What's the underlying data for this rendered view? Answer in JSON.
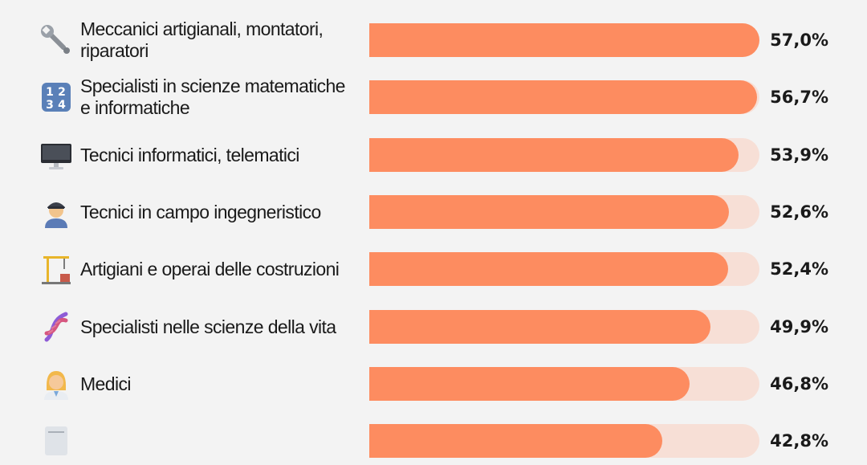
{
  "colors": {
    "background": "#f3f3f3",
    "bar": "#fd8c60",
    "track": "#f7dfd6",
    "text": "#1a1a1a"
  },
  "chart_data": {
    "type": "bar",
    "orientation": "horizontal",
    "max": 57.0,
    "categories": [
      "Meccanici artigianali, montatori, riparatori",
      "Specialisti in scienze matematiche e informatiche",
      "Tecnici informatici, telematici",
      "Tecnici in campo ingegneristico",
      "Artigiani e operai delle costruzioni",
      "Specialisti nelle scienze della vita",
      "Medici",
      ""
    ],
    "values": [
      57.0,
      56.7,
      53.9,
      52.6,
      52.4,
      49.9,
      46.8,
      42.8
    ],
    "value_labels": [
      "57,0%",
      "56,7%",
      "53,9%",
      "52,6%",
      "52,4%",
      "49,9%",
      "46,8%",
      "42,8%"
    ],
    "icons": [
      "wrench-icon",
      "numbers-icon",
      "computer-icon",
      "engineer-icon",
      "crane-icon",
      "dna-icon",
      "doctor-icon",
      "document-icon"
    ],
    "label_lines": [
      [
        "Meccanici artigianali, montatori,",
        "riparatori"
      ],
      [
        "Specialisti in scienze matematiche",
        "e informatiche"
      ],
      [
        "Tecnici informatici, telematici"
      ],
      [
        "Tecnici in campo ingegneristico"
      ],
      [
        "Artigiani e operai delle costruzioni"
      ],
      [
        "Specialisti nelle scienze della vita"
      ],
      [
        "Medici"
      ],
      [
        ""
      ]
    ]
  }
}
